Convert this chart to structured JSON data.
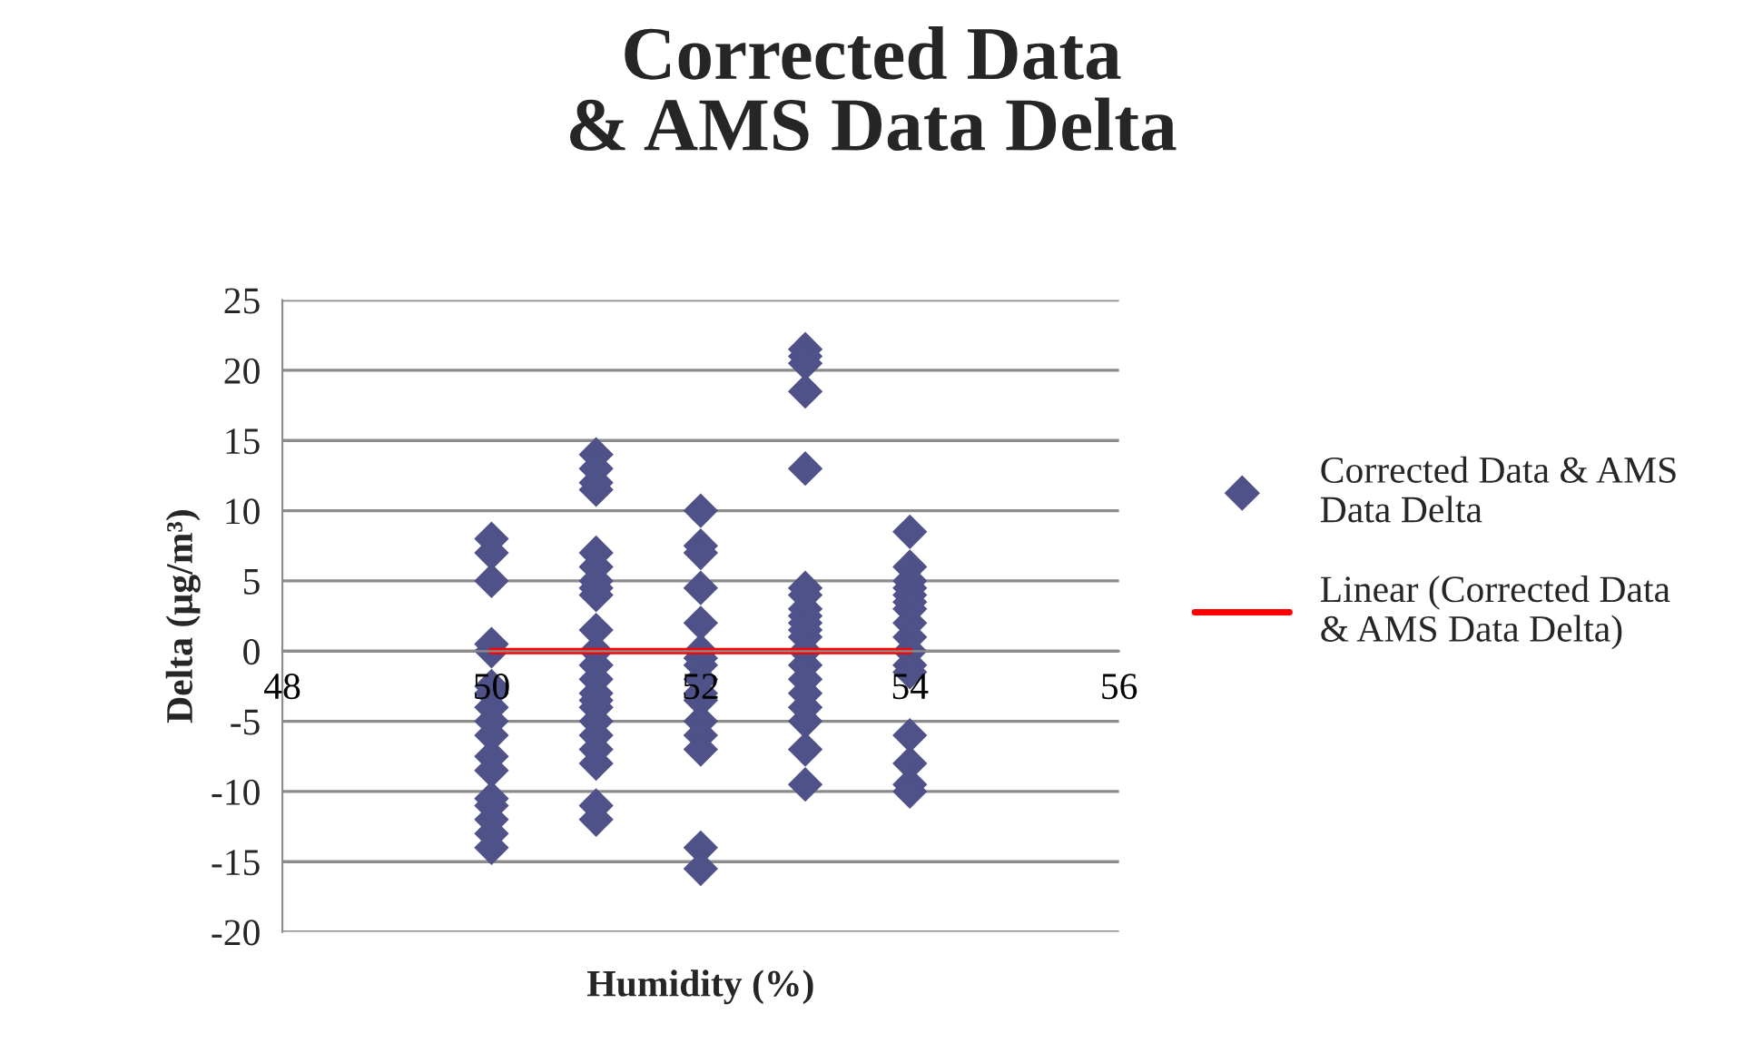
{
  "chart_data": {
    "type": "scatter",
    "title": "Corrected Data\n& AMS Data Delta",
    "xlabel": "Humidity (%)",
    "ylabel": "Delta (µg/m³)",
    "xlim": [
      48,
      56
    ],
    "xticks": [
      48,
      50,
      52,
      54,
      56
    ],
    "ylim": [
      -20,
      25
    ],
    "yticks": [
      -20,
      -15,
      -10,
      -5,
      0,
      5,
      10,
      15,
      20,
      25
    ],
    "grid": "y",
    "legend": "right",
    "marker": "diamond",
    "series": [
      {
        "name": "Corrected Data & AMS Data Delta",
        "color": "#4f5189",
        "x": [
          50,
          50,
          50,
          50,
          50,
          50,
          50,
          50,
          50,
          50,
          50,
          50,
          50,
          50,
          50,
          50,
          50,
          51,
          51,
          51,
          51,
          51,
          51,
          51,
          51,
          51,
          51,
          51,
          51,
          51,
          51,
          51,
          51,
          51,
          51,
          51,
          51,
          51,
          51,
          52,
          52,
          52,
          52,
          52,
          52,
          52,
          52,
          52,
          52,
          52,
          52,
          52,
          52,
          52,
          52,
          53,
          53,
          53,
          53,
          53,
          53,
          53,
          53,
          53,
          53,
          53,
          53,
          53,
          53,
          53,
          53,
          53,
          53,
          53,
          53,
          54,
          54,
          54,
          54,
          54,
          54,
          54,
          54,
          54,
          54,
          54,
          54,
          54,
          54,
          54,
          54
        ],
        "values": [
          8,
          7,
          5,
          0.5,
          0,
          -2.5,
          -3,
          -4,
          -5,
          -6,
          -7.5,
          -8.5,
          -10.5,
          -11,
          -12,
          -13,
          -14,
          14,
          13,
          12,
          11.5,
          7,
          6,
          5,
          4.5,
          4,
          1.5,
          0,
          -1,
          -2,
          -3,
          -3.5,
          -4,
          -5,
          -6,
          -7,
          -8,
          -11,
          -12,
          10,
          7.5,
          7,
          4.5,
          2,
          0,
          -0.5,
          -1,
          -2,
          -3,
          -3.5,
          -5,
          -6,
          -7,
          -14,
          -15.5,
          21.5,
          21,
          20.5,
          18.5,
          13,
          4.5,
          4,
          3,
          2.5,
          2,
          1.5,
          1,
          0,
          -1,
          -2,
          -3,
          -4,
          -5,
          -7,
          -9.5,
          8.5,
          6,
          5,
          4.5,
          4,
          3.5,
          3,
          2,
          1,
          0,
          -1,
          -1.5,
          -6,
          -8,
          -9.5,
          -10
        ]
      },
      {
        "name": "Linear (Corrected Data & AMS Data Delta)",
        "type": "line",
        "marker": "none",
        "color": "#ff0000",
        "x": [
          50,
          54
        ],
        "values": [
          0,
          0
        ]
      }
    ]
  }
}
